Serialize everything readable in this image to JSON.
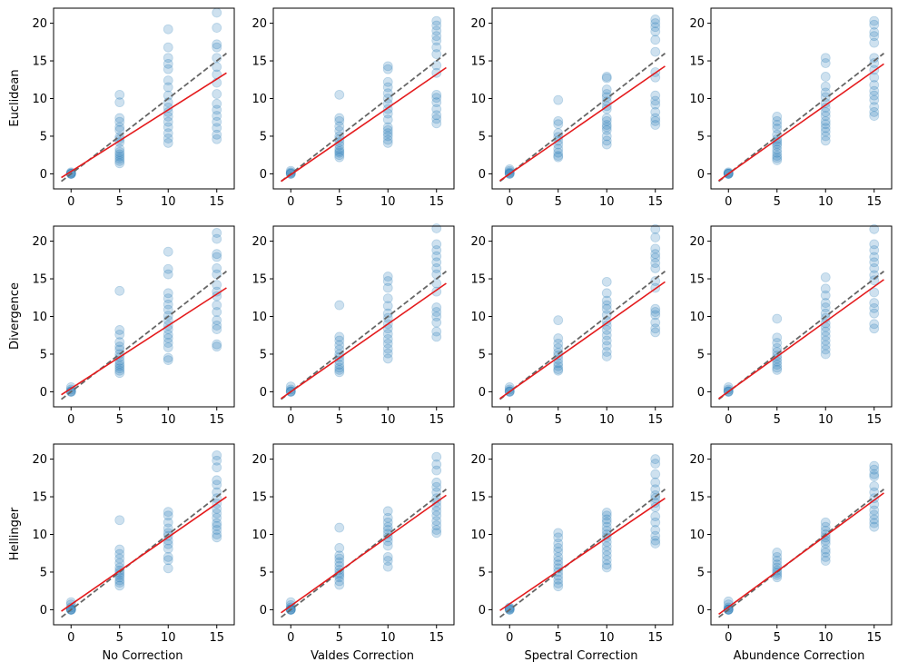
{
  "colors": {
    "points": "#1f77b4",
    "fit_line": "#e41a1c",
    "identity_line": "#666666"
  },
  "chart_data": {
    "type": "scatter",
    "layout": "3x4 grid",
    "x_ticks": [
      0,
      5,
      10,
      15
    ],
    "y_ticks": [
      0,
      5,
      10,
      15,
      20
    ],
    "xlim": [
      -1.8,
      16.8
    ],
    "ylim": [
      -2,
      22
    ],
    "row_labels": [
      "Euclidean",
      "Divergence",
      "Hellinger"
    ],
    "col_labels": [
      "No Correction",
      "Valdes Correction",
      "Spectral Correction",
      "Abundence Correction"
    ],
    "identity_line": {
      "style": "dashed",
      "x": [
        -1,
        16
      ],
      "y": [
        -1,
        16
      ]
    },
    "panels": [
      {
        "row": "Euclidean",
        "col": "No Correction",
        "points": {
          "0": [
            0,
            0,
            0,
            0.1,
            0.2
          ],
          "5": [
            10.5,
            9.5,
            7.4,
            6.9,
            6.2,
            5.8,
            4.9,
            4.6,
            4.2,
            3.3,
            2.9,
            2.6,
            2.3,
            2.0,
            1.7,
            1.4
          ],
          "10": [
            19.2,
            16.8,
            15.4,
            14.6,
            13.9,
            12.4,
            11.5,
            10.4,
            9.5,
            8.8,
            8.2,
            7.6,
            6.9,
            6.2,
            5.4,
            4.7,
            4.1
          ],
          "15": [
            21.4,
            19.4,
            17.2,
            16.8,
            15.4,
            14.2,
            13.2,
            12.1,
            10.6,
            9.3,
            8.5,
            7.7,
            6.9,
            6.1,
            5.2,
            4.6
          ]
        },
        "fit": {
          "x": [
            -1,
            16
          ],
          "y": [
            -0.5,
            13.4
          ]
        }
      },
      {
        "row": "Euclidean",
        "col": "Valdes Correction",
        "points": {
          "0": [
            0,
            0,
            0.1,
            0.2,
            0.4
          ],
          "5": [
            10.5,
            7.4,
            7.0,
            6.3,
            5.7,
            5.0,
            4.6,
            4.2,
            3.8,
            3.3,
            3.0,
            2.8,
            2.5,
            2.2
          ],
          "10": [
            14.3,
            13.9,
            12.2,
            11.5,
            10.7,
            10.0,
            9.3,
            8.6,
            8.0,
            7.2,
            6.2,
            5.8,
            5.4,
            5.0,
            4.5,
            4.1
          ],
          "15": [
            20.3,
            19.7,
            19.0,
            18.3,
            17.7,
            16.8,
            15.9,
            14.4,
            13.4,
            10.5,
            10.1,
            9.5,
            8.6,
            7.8,
            7.3,
            6.7
          ]
        },
        "fit": {
          "x": [
            -1,
            16
          ],
          "y": [
            -1.0,
            14.1
          ]
        }
      },
      {
        "row": "Euclidean",
        "col": "Spectral Correction",
        "points": {
          "0": [
            0,
            0,
            0.1,
            0.2,
            0.4,
            0.6
          ],
          "5": [
            9.8,
            7.0,
            6.6,
            5.4,
            4.9,
            4.4,
            3.9,
            3.3,
            2.8,
            2.4,
            2.2
          ],
          "10": [
            12.9,
            12.7,
            11.2,
            10.6,
            10.2,
            9.6,
            9.0,
            8.6,
            7.4,
            7.0,
            6.5,
            6.2,
            5.8,
            5.0,
            4.4,
            3.9
          ],
          "15": [
            20.5,
            20.0,
            19.5,
            18.9,
            17.8,
            16.2,
            13.5,
            12.8,
            10.4,
            9.7,
            9.2,
            8.2,
            7.4,
            7.0,
            6.5
          ]
        },
        "fit": {
          "x": [
            -1,
            16
          ],
          "y": [
            -0.9,
            14.3
          ]
        }
      },
      {
        "row": "Euclidean",
        "col": "Abundence Correction",
        "points": {
          "0": [
            0,
            0,
            0,
            0.1,
            0.2
          ],
          "5": [
            7.6,
            7.0,
            6.5,
            6.0,
            5.2,
            4.6,
            4.3,
            4.0,
            3.7,
            3.2,
            2.8,
            2.4,
            2.1,
            1.8
          ],
          "10": [
            15.4,
            14.7,
            12.9,
            11.6,
            10.8,
            10.2,
            9.4,
            8.8,
            8.2,
            7.7,
            7.0,
            6.6,
            6.1,
            5.6,
            5.0,
            4.4
          ],
          "15": [
            20.3,
            19.8,
            18.8,
            18.3,
            17.4,
            15.4,
            14.7,
            13.8,
            12.8,
            11.8,
            11.0,
            10.4,
            9.8,
            8.9,
            8.2,
            7.7
          ]
        },
        "fit": {
          "x": [
            -1,
            16
          ],
          "y": [
            -0.9,
            14.6
          ]
        }
      },
      {
        "row": "Divergence",
        "col": "No Correction",
        "points": {
          "0": [
            0,
            0,
            0.1,
            0.3,
            0.6
          ],
          "5": [
            13.4,
            8.2,
            7.6,
            6.6,
            6.0,
            5.6,
            5.0,
            4.6,
            4.1,
            3.7,
            3.4,
            3.1,
            2.8,
            2.5
          ],
          "10": [
            18.6,
            16.3,
            15.6,
            13.1,
            12.4,
            11.6,
            10.9,
            10.1,
            9.5,
            8.8,
            8.3,
            7.6,
            7.1,
            6.5,
            5.9,
            4.5,
            4.2
          ],
          "15": [
            21.1,
            20.3,
            18.3,
            17.9,
            16.4,
            15.6,
            14.2,
            13.3,
            12.7,
            11.5,
            10.6,
            9.5,
            8.8,
            8.3,
            6.3,
            6.0
          ]
        },
        "fit": {
          "x": [
            -1,
            16
          ],
          "y": [
            -0.4,
            13.8
          ]
        }
      },
      {
        "row": "Divergence",
        "col": "Valdes Correction",
        "points": {
          "0": [
            0,
            0,
            0.1,
            0.3,
            0.7
          ],
          "5": [
            11.5,
            7.3,
            6.8,
            6.2,
            5.6,
            5.0,
            4.6,
            4.1,
            3.6,
            3.2,
            2.9,
            2.6
          ],
          "10": [
            15.3,
            14.7,
            13.8,
            12.4,
            11.4,
            10.4,
            9.8,
            9.0,
            8.4,
            7.7,
            7.0,
            6.4,
            5.7,
            5.1,
            4.4
          ],
          "15": [
            21.7,
            19.6,
            18.8,
            18.0,
            17.2,
            16.4,
            15.6,
            14.4,
            13.3,
            11.2,
            10.6,
            10.0,
            9.2,
            8.0,
            7.3
          ]
        },
        "fit": {
          "x": [
            -1,
            16
          ],
          "y": [
            -0.9,
            14.4
          ]
        }
      },
      {
        "row": "Divergence",
        "col": "Spectral Correction",
        "points": {
          "0": [
            0,
            0,
            0.1,
            0.3,
            0.6
          ],
          "5": [
            9.5,
            7.1,
            6.4,
            5.8,
            5.2,
            4.8,
            4.3,
            3.8,
            3.4,
            3.0,
            2.8
          ],
          "10": [
            14.6,
            13.1,
            12.1,
            11.5,
            11.0,
            10.2,
            9.4,
            8.8,
            8.2,
            7.5,
            6.8,
            6.1,
            5.3,
            4.7
          ],
          "15": [
            21.6,
            20.5,
            19.0,
            18.3,
            17.8,
            17.1,
            16.4,
            14.7,
            13.8,
            11.0,
            10.6,
            10.2,
            9.2,
            8.4,
            7.9
          ]
        },
        "fit": {
          "x": [
            -1,
            16
          ],
          "y": [
            -0.9,
            14.6
          ]
        }
      },
      {
        "row": "Divergence",
        "col": "Abundence Correction",
        "points": {
          "0": [
            0,
            0,
            0.1,
            0.3,
            0.6
          ],
          "5": [
            9.7,
            7.2,
            6.5,
            5.8,
            5.3,
            4.8,
            4.4,
            4.0,
            3.6,
            3.2,
            2.9
          ],
          "10": [
            15.2,
            13.7,
            12.8,
            11.8,
            11.2,
            10.4,
            9.8,
            9.1,
            8.6,
            8.0,
            7.4,
            6.8,
            6.2,
            5.6,
            5.0
          ],
          "15": [
            21.6,
            19.6,
            18.8,
            17.9,
            17.2,
            16.4,
            15.5,
            14.8,
            13.2,
            11.8,
            11.1,
            10.4,
            9.0,
            8.4
          ]
        },
        "fit": {
          "x": [
            -1,
            16
          ],
          "y": [
            -0.9,
            14.9
          ]
        }
      },
      {
        "row": "Hellinger",
        "col": "No Correction",
        "points": {
          "0": [
            0,
            0,
            0,
            0.1,
            0.3,
            0.7,
            1.0
          ],
          "5": [
            11.9,
            8.0,
            7.4,
            6.8,
            6.2,
            5.6,
            5.2,
            4.9,
            4.6,
            4.3,
            3.9,
            3.6,
            3.2
          ],
          "10": [
            13.0,
            12.5,
            11.6,
            10.8,
            10.2,
            9.8,
            9.2,
            8.7,
            8.1,
            7.0,
            6.6,
            5.5
          ],
          "15": [
            20.5,
            19.8,
            18.9,
            17.2,
            16.6,
            15.6,
            14.8,
            14.1,
            13.4,
            12.8,
            12.2,
            11.5,
            11.1,
            10.6,
            10.0,
            9.6
          ]
        },
        "fit": {
          "x": [
            -1,
            16
          ],
          "y": [
            -0.2,
            15.0
          ]
        }
      },
      {
        "row": "Hellinger",
        "col": "Valdes Correction",
        "points": {
          "0": [
            0,
            0,
            0,
            0.1,
            0.3,
            0.6,
            1.0
          ],
          "5": [
            10.9,
            8.2,
            7.2,
            6.8,
            6.3,
            5.8,
            5.3,
            4.9,
            4.6,
            4.3,
            3.8,
            3.3
          ],
          "10": [
            13.1,
            12.2,
            11.6,
            11.0,
            10.6,
            10.1,
            9.6,
            9.1,
            8.5,
            7.0,
            6.5,
            5.7
          ],
          "15": [
            20.3,
            19.3,
            18.5,
            16.9,
            16.3,
            15.6,
            14.8,
            14.3,
            13.7,
            13.1,
            12.5,
            11.8,
            11.2,
            10.6,
            10.2
          ]
        },
        "fit": {
          "x": [
            -1,
            16
          ],
          "y": [
            -0.4,
            15.2
          ]
        }
      },
      {
        "row": "Hellinger",
        "col": "Spectral Correction",
        "points": {
          "0": [
            0,
            0,
            0.1,
            0.2,
            0.3
          ],
          "5": [
            10.2,
            9.6,
            8.8,
            8.2,
            7.7,
            7.0,
            6.5,
            6.0,
            5.5,
            5.0,
            4.5,
            4.0,
            3.5,
            3.1
          ],
          "10": [
            12.9,
            12.5,
            12.0,
            11.6,
            11.0,
            10.5,
            10.0,
            9.6,
            9.0,
            8.4,
            7.8,
            7.2,
            6.6,
            6.0,
            5.6
          ],
          "15": [
            20.0,
            19.4,
            18.0,
            16.9,
            16.0,
            15.2,
            14.8,
            14.2,
            13.6,
            12.4,
            11.6,
            10.6,
            9.8,
            9.2,
            8.8
          ]
        },
        "fit": {
          "x": [
            -1,
            16
          ],
          "y": [
            -0.1,
            14.8
          ]
        }
      },
      {
        "row": "Hellinger",
        "col": "Abundence Correction",
        "points": {
          "0": [
            0,
            0,
            0,
            0.1,
            0.3,
            0.7,
            1.1
          ],
          "5": [
            7.6,
            7.0,
            6.5,
            6.0,
            5.6,
            5.2,
            4.9,
            4.6,
            4.3
          ],
          "10": [
            11.6,
            11.0,
            10.5,
            10.0,
            9.6,
            9.2,
            8.8,
            8.0,
            7.6,
            7.0,
            6.5
          ],
          "15": [
            19.1,
            18.6,
            18.0,
            17.7,
            16.4,
            15.6,
            14.8,
            14.0,
            13.2,
            12.6,
            12.0,
            11.5,
            11.0
          ]
        },
        "fit": {
          "x": [
            -1,
            16
          ],
          "y": [
            -0.6,
            15.5
          ]
        }
      }
    ]
  }
}
